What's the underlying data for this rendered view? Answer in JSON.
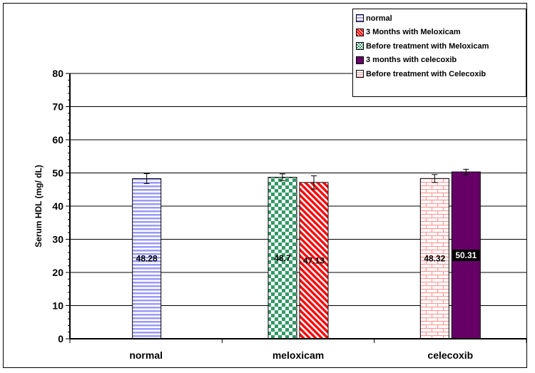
{
  "chart_data": {
    "type": "bar",
    "categories": [
      "normal",
      "meloxicam",
      "celecoxib"
    ],
    "ylabel": "Serum HDL (mg/ dL)",
    "ylim": [
      0,
      80
    ],
    "yticks": [
      0,
      10,
      20,
      30,
      40,
      50,
      60,
      70,
      80
    ],
    "grid": true,
    "legend_position": "top-right",
    "series": [
      {
        "name": "normal",
        "values": [
          48.28,
          null,
          null
        ],
        "errors": [
          1.5,
          null,
          null
        ],
        "labels": [
          "48.28",
          null,
          null
        ],
        "color": "#9999ff",
        "pattern": "horizontal-stripes"
      },
      {
        "name": "3 Months with Meloxicam",
        "values": [
          null,
          47.13,
          null
        ],
        "errors": [
          null,
          2.0,
          null
        ],
        "labels": [
          null,
          "47.13",
          null
        ],
        "color": "#ff0000",
        "pattern": "diagonal-stripes"
      },
      {
        "name": "Before treatment with  Meloxicam",
        "values": [
          null,
          48.7,
          null
        ],
        "errors": [
          null,
          1.0,
          null
        ],
        "labels": [
          null,
          "48.7",
          null
        ],
        "color": "#339966",
        "pattern": "checkerboard"
      },
      {
        "name": "3 months with celecoxib",
        "values": [
          null,
          null,
          50.31
        ],
        "errors": [
          null,
          null,
          0.8
        ],
        "labels": [
          null,
          null,
          "50.31"
        ],
        "color": "#660066",
        "pattern": "solid"
      },
      {
        "name": "Before treatment with Celecoxib",
        "values": [
          null,
          null,
          48.32
        ],
        "errors": [
          null,
          null,
          1.2
        ],
        "labels": [
          null,
          null,
          "48.32"
        ],
        "color": "#ff9999",
        "pattern": "brick"
      }
    ]
  }
}
